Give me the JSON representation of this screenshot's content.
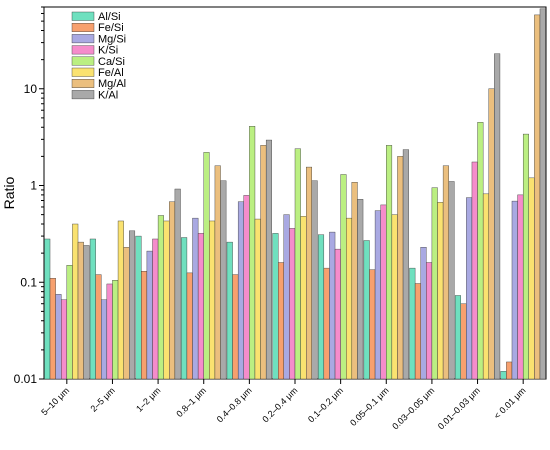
{
  "chart_data": {
    "type": "bar",
    "ylabel": "Ratio",
    "yscale": "log",
    "ylim": [
      0.01,
      70
    ],
    "yticks": [
      {
        "value": 0.01,
        "label": "0.01"
      },
      {
        "value": 0.1,
        "label": "0.1"
      },
      {
        "value": 1,
        "label": "1"
      },
      {
        "value": 10,
        "label": "10"
      }
    ],
    "legend_position": "top-left",
    "categories": [
      "5–10 μm",
      "2–5 μm",
      "1–2 μm",
      "0.8–1 μm",
      "0.4–0.8 μm",
      "0.2–0.4 μm",
      "0.1–0.2 μm",
      "0.05–0.1 μm",
      "0.03–0.05 μm",
      "0.01–0.03 μm",
      "< 0.01 μm"
    ],
    "series": [
      {
        "name": "Al/Si",
        "color": "#6fe0bf",
        "values": [
          0.28,
          0.28,
          0.3,
          0.29,
          0.26,
          0.32,
          0.31,
          0.27,
          0.14,
          0.073,
          0.012
        ]
      },
      {
        "name": "Fe/Si",
        "color": "#f7a06e",
        "values": [
          0.11,
          0.12,
          0.13,
          0.125,
          0.12,
          0.16,
          0.14,
          0.135,
          0.097,
          0.06,
          0.015
        ]
      },
      {
        "name": "Mg/Si",
        "color": "#a9a9e2",
        "values": [
          0.075,
          0.066,
          0.21,
          0.46,
          0.68,
          0.5,
          0.33,
          0.55,
          0.23,
          0.75,
          0.69
        ]
      },
      {
        "name": "K/Si",
        "color": "#f58ccb",
        "values": [
          0.066,
          0.096,
          0.28,
          0.32,
          0.79,
          0.36,
          0.22,
          0.63,
          0.16,
          1.75,
          0.8
        ]
      },
      {
        "name": "Ca/Si",
        "color": "#bbef82",
        "values": [
          0.15,
          0.105,
          0.49,
          2.2,
          4.1,
          2.4,
          1.3,
          2.6,
          0.95,
          4.5,
          3.4
        ]
      },
      {
        "name": "Fe/Al",
        "color": "#fae270",
        "values": [
          0.4,
          0.43,
          0.43,
          0.43,
          0.45,
          0.48,
          0.46,
          0.5,
          0.67,
          0.82,
          1.2
        ]
      },
      {
        "name": "Mg/Al",
        "color": "#ebbf7e",
        "values": [
          0.26,
          0.23,
          0.68,
          1.6,
          2.6,
          1.55,
          1.08,
          2.0,
          1.6,
          10.0,
          58
        ]
      },
      {
        "name": "K/Al",
        "color": "#a9a9a9",
        "values": [
          0.24,
          0.34,
          0.92,
          1.12,
          2.95,
          1.12,
          0.72,
          2.35,
          1.1,
          23,
          67
        ]
      }
    ]
  }
}
